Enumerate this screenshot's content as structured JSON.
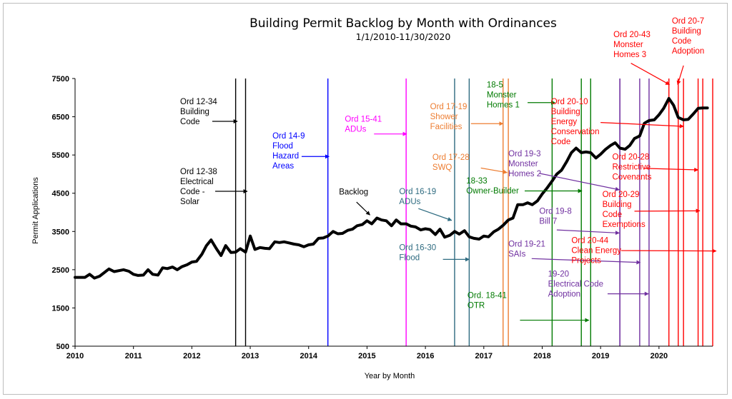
{
  "chart_data": {
    "type": "line",
    "title": "Building Permit Backlog by Month with Ordinances",
    "subtitle": "1/1/2010-11/30/2020",
    "xlabel": "Year by Month",
    "ylabel": "Permit Applications",
    "xlim": [
      2010,
      2020.92
    ],
    "ylim": [
      500,
      7500
    ],
    "x_ticks": [
      "2010",
      "2011",
      "2012",
      "2013",
      "2014",
      "2015",
      "2016",
      "2017",
      "2018",
      "2019",
      "2020"
    ],
    "y_ticks": [
      "500",
      "1500",
      "2500",
      "3500",
      "4500",
      "5500",
      "6500",
      "7500"
    ],
    "grid": false,
    "series": [
      {
        "name": "Backlog",
        "color": "#000000",
        "points": [
          [
            2010.0,
            2300
          ],
          [
            2010.17,
            2300
          ],
          [
            2010.25,
            2380
          ],
          [
            2010.33,
            2280
          ],
          [
            2010.42,
            2330
          ],
          [
            2010.58,
            2520
          ],
          [
            2010.67,
            2450
          ],
          [
            2010.83,
            2500
          ],
          [
            2010.92,
            2460
          ],
          [
            2011.0,
            2380
          ],
          [
            2011.08,
            2350
          ],
          [
            2011.17,
            2360
          ],
          [
            2011.25,
            2500
          ],
          [
            2011.33,
            2380
          ],
          [
            2011.42,
            2360
          ],
          [
            2011.5,
            2550
          ],
          [
            2011.58,
            2530
          ],
          [
            2011.67,
            2570
          ],
          [
            2011.75,
            2500
          ],
          [
            2011.83,
            2580
          ],
          [
            2011.92,
            2630
          ],
          [
            2012.0,
            2700
          ],
          [
            2012.08,
            2720
          ],
          [
            2012.17,
            2900
          ],
          [
            2012.25,
            3130
          ],
          [
            2012.33,
            3280
          ],
          [
            2012.42,
            3050
          ],
          [
            2012.5,
            2870
          ],
          [
            2012.58,
            3130
          ],
          [
            2012.67,
            2950
          ],
          [
            2012.75,
            2960
          ],
          [
            2012.83,
            3050
          ],
          [
            2012.92,
            2960
          ],
          [
            2013.0,
            3380
          ],
          [
            2013.08,
            3030
          ],
          [
            2013.17,
            3080
          ],
          [
            2013.25,
            3060
          ],
          [
            2013.33,
            3050
          ],
          [
            2013.42,
            3230
          ],
          [
            2013.5,
            3210
          ],
          [
            2013.58,
            3230
          ],
          [
            2013.67,
            3200
          ],
          [
            2013.75,
            3170
          ],
          [
            2013.83,
            3150
          ],
          [
            2013.92,
            3100
          ],
          [
            2014.0,
            3150
          ],
          [
            2014.08,
            3170
          ],
          [
            2014.17,
            3320
          ],
          [
            2014.25,
            3330
          ],
          [
            2014.33,
            3380
          ],
          [
            2014.42,
            3500
          ],
          [
            2014.5,
            3440
          ],
          [
            2014.58,
            3450
          ],
          [
            2014.67,
            3530
          ],
          [
            2014.75,
            3560
          ],
          [
            2014.83,
            3650
          ],
          [
            2014.92,
            3680
          ],
          [
            2015.0,
            3780
          ],
          [
            2015.08,
            3700
          ],
          [
            2015.17,
            3850
          ],
          [
            2015.25,
            3800
          ],
          [
            2015.33,
            3780
          ],
          [
            2015.42,
            3650
          ],
          [
            2015.5,
            3800
          ],
          [
            2015.58,
            3700
          ],
          [
            2015.67,
            3700
          ],
          [
            2015.75,
            3640
          ],
          [
            2015.83,
            3620
          ],
          [
            2015.92,
            3540
          ],
          [
            2016.0,
            3570
          ],
          [
            2016.08,
            3550
          ],
          [
            2016.17,
            3420
          ],
          [
            2016.25,
            3560
          ],
          [
            2016.33,
            3350
          ],
          [
            2016.42,
            3400
          ],
          [
            2016.5,
            3500
          ],
          [
            2016.58,
            3430
          ],
          [
            2016.67,
            3520
          ],
          [
            2016.75,
            3360
          ],
          [
            2016.83,
            3320
          ],
          [
            2016.92,
            3300
          ],
          [
            2017.0,
            3380
          ],
          [
            2017.08,
            3360
          ],
          [
            2017.17,
            3490
          ],
          [
            2017.25,
            3560
          ],
          [
            2017.33,
            3660
          ],
          [
            2017.42,
            3800
          ],
          [
            2017.5,
            3850
          ],
          [
            2017.58,
            4200
          ],
          [
            2017.67,
            4200
          ],
          [
            2017.75,
            4250
          ],
          [
            2017.83,
            4200
          ],
          [
            2017.92,
            4300
          ],
          [
            2018.0,
            4480
          ],
          [
            2018.08,
            4630
          ],
          [
            2018.17,
            4820
          ],
          [
            2018.25,
            5000
          ],
          [
            2018.33,
            5100
          ],
          [
            2018.42,
            5330
          ],
          [
            2018.5,
            5560
          ],
          [
            2018.58,
            5680
          ],
          [
            2018.67,
            5560
          ],
          [
            2018.75,
            5580
          ],
          [
            2018.83,
            5560
          ],
          [
            2018.92,
            5420
          ],
          [
            2019.0,
            5520
          ],
          [
            2019.08,
            5640
          ],
          [
            2019.17,
            5750
          ],
          [
            2019.25,
            5820
          ],
          [
            2019.33,
            5680
          ],
          [
            2019.42,
            5650
          ],
          [
            2019.5,
            5750
          ],
          [
            2019.58,
            5930
          ],
          [
            2019.67,
            6000
          ],
          [
            2019.75,
            6330
          ],
          [
            2019.83,
            6400
          ],
          [
            2019.92,
            6420
          ],
          [
            2020.0,
            6550
          ],
          [
            2020.08,
            6720
          ],
          [
            2020.17,
            6980
          ],
          [
            2020.25,
            6800
          ],
          [
            2020.33,
            6480
          ],
          [
            2020.42,
            6420
          ],
          [
            2020.5,
            6430
          ],
          [
            2020.58,
            6560
          ],
          [
            2020.67,
            6720
          ],
          [
            2020.75,
            6730
          ],
          [
            2020.83,
            6730
          ]
        ]
      }
    ],
    "annotations": [
      {
        "label": "Backlog",
        "lines": [
          "Backlog"
        ],
        "color": "#000000",
        "text_x": 2014.52,
        "text_y": 4470,
        "arrow_from": [
          2014.82,
          4270
        ],
        "arrow_to": [
          2015.05,
          3930
        ],
        "line_x": null
      },
      {
        "label": "Ord 12-34 Building Code",
        "lines": [
          "Ord 12-34",
          "Building",
          "Code"
        ],
        "color": "#000000",
        "text_x": 2011.8,
        "text_y": 6830,
        "arrow_from": [
          2012.35,
          6380
        ],
        "arrow_to": [
          2012.78,
          6380
        ],
        "line_x": 2012.75
      },
      {
        "label": "Ord 12-38 Electrical Code - Solar",
        "lines": [
          "Ord 12-38",
          "Electrical",
          "Code -",
          "Solar"
        ],
        "color": "#000000",
        "text_x": 2011.8,
        "text_y": 5000,
        "arrow_from": [
          2012.4,
          4550
        ],
        "arrow_to": [
          2012.95,
          4550
        ],
        "line_x": 2012.92
      },
      {
        "label": "Ord 14-9 Flood Hazard Areas",
        "lines": [
          "Ord 14-9",
          "Flood",
          "Hazard",
          "Areas"
        ],
        "color": "#0000ff",
        "text_x": 2013.38,
        "text_y": 5930,
        "arrow_from": [
          2013.88,
          5460
        ],
        "arrow_to": [
          2014.35,
          5460
        ],
        "line_x": 2014.33
      },
      {
        "label": "Ord 15-41 ADUs",
        "lines": [
          "Ord 15-41",
          "ADUs"
        ],
        "color": "#ff00ff",
        "text_x": 2014.62,
        "text_y": 6370,
        "arrow_from": [
          2015.12,
          6050
        ],
        "arrow_to": [
          2015.68,
          6050
        ],
        "line_x": 2015.67
      },
      {
        "label": "Ord 16-19 ADUs",
        "lines": [
          "Ord 16-19",
          "ADUs"
        ],
        "color": "#2e6b80",
        "text_x": 2015.55,
        "text_y": 4480,
        "arrow_from": [
          2015.88,
          4100
        ],
        "arrow_to": [
          2016.45,
          3790
        ],
        "line_x": 2016.5
      },
      {
        "label": "Ord 16-30 Flood",
        "lines": [
          "Ord 16-30",
          "Flood"
        ],
        "color": "#2e6b80",
        "text_x": 2015.55,
        "text_y": 3010,
        "arrow_from": [
          2016.3,
          2770
        ],
        "arrow_to": [
          2016.75,
          2770
        ],
        "line_x": 2016.75
      },
      {
        "label": "Ord 17-19 Shower Facilities",
        "lines": [
          "Ord 17-19",
          "Shower",
          "Facilities"
        ],
        "color": "#ed7d31",
        "text_x": 2016.08,
        "text_y": 6700,
        "arrow_from": [
          2016.78,
          6320
        ],
        "arrow_to": [
          2017.33,
          6320
        ],
        "line_x": 2017.33
      },
      {
        "label": "Ord 17-28 SWQ",
        "lines": [
          "Ord 17-28",
          "SWQ"
        ],
        "color": "#ed7d31",
        "text_x": 2016.12,
        "text_y": 5370,
        "arrow_from": [
          2016.95,
          5160
        ],
        "arrow_to": [
          2017.4,
          5040
        ],
        "line_x": 2017.42
      },
      {
        "label": "18-5 Monster Homes 1",
        "lines": [
          "18-5",
          "Monster",
          "Homes 1"
        ],
        "color": "#007a00",
        "text_x": 2017.05,
        "text_y": 7270,
        "arrow_from": [
          2017.75,
          6870
        ],
        "arrow_to": [
          2018.22,
          6870
        ],
        "line_x": 2018.17
      },
      {
        "label": "18-33 Owner-Builder",
        "lines": [
          "18-33",
          "Owner-Builder"
        ],
        "color": "#007a00",
        "text_x": 2016.7,
        "text_y": 4760,
        "arrow_from": [
          2017.7,
          4560
        ],
        "arrow_to": [
          2018.68,
          4560
        ],
        "line_x": 2018.67
      },
      {
        "label": "Ord. 18-41 OTR",
        "lines": [
          "Ord. 18-41",
          "OTR"
        ],
        "color": "#007a00",
        "text_x": 2016.72,
        "text_y": 1760,
        "arrow_from": [
          2017.62,
          1180
        ],
        "arrow_to": [
          2018.8,
          1180
        ],
        "line_x": 2018.83
      },
      {
        "label": "Ord 19-3 Monster Homes 2",
        "lines": [
          "Ord 19-3",
          "Monster",
          "Homes 2"
        ],
        "color": "#7030a0",
        "text_x": 2017.42,
        "text_y": 5470,
        "arrow_from": [
          2017.95,
          5020
        ],
        "arrow_to": [
          2019.32,
          4590
        ],
        "line_x": 2019.33
      },
      {
        "label": "Ord 19-8 Bill 7",
        "lines": [
          "Ord 19-8",
          "Bill 7"
        ],
        "color": "#7030a0",
        "text_x": 2017.95,
        "text_y": 3960,
        "arrow_from": [
          2018.25,
          3540
        ],
        "arrow_to": [
          2019.32,
          3460
        ],
        "line_x": 2019.33
      },
      {
        "label": "Ord 19-21 SAIs",
        "lines": [
          "Ord 19-21",
          "SAIs"
        ],
        "color": "#7030a0",
        "text_x": 2017.42,
        "text_y": 3100,
        "arrow_from": [
          2017.82,
          2790
        ],
        "arrow_to": [
          2019.68,
          2690
        ],
        "line_x": 2019.67
      },
      {
        "label": "19-20 Electrical Code Adoption",
        "lines": [
          "19-20",
          "Electrical Code",
          "Adoption"
        ],
        "color": "#7030a0",
        "text_x": 2018.1,
        "text_y": 2320,
        "arrow_from": [
          2019.12,
          1870
        ],
        "arrow_to": [
          2019.82,
          1870
        ],
        "line_x": 2019.83
      },
      {
        "label": "Ord 20-43 Monster Homes 3",
        "lines": [
          "Ord 20-43",
          "Monster",
          "Homes 3"
        ],
        "color": "#ff0000",
        "text_x": 2019.22,
        "text_y": 8580,
        "arrow_from": [
          2019.52,
          7900
        ],
        "arrow_to": [
          2020.18,
          7340
        ],
        "line_x": 2020.17
      },
      {
        "label": "Ord 20-7 Building Code Adoption",
        "lines": [
          "Ord 20-7",
          "Building",
          "Code",
          "Adoption"
        ],
        "color": "#ff0000",
        "text_x": 2020.22,
        "text_y": 8940,
        "arrow_from": [
          2020.42,
          7840
        ],
        "arrow_to": [
          2020.32,
          7340
        ],
        "line_x": 2020.33
      },
      {
        "label": "Ord 20-10 Building Energy Conservation Code",
        "lines": [
          "Ord 20-10",
          "Building",
          "Energy",
          "Conservation",
          "Code"
        ],
        "color": "#ff0000",
        "text_x": 2018.15,
        "text_y": 6830,
        "arrow_from": [
          2019.0,
          6350
        ],
        "arrow_to": [
          2020.42,
          6250
        ],
        "line_x": 2020.42
      },
      {
        "label": "Ord 20-28 Restrictive Covenants",
        "lines": [
          "Ord 20-28",
          "Restrictive",
          "Covenants"
        ],
        "color": "#ff0000",
        "text_x": 2019.2,
        "text_y": 5380,
        "arrow_from": [
          2019.75,
          5150
        ],
        "arrow_to": [
          2020.67,
          5110
        ],
        "line_x": 2020.67
      },
      {
        "label": "Ord 20-29 Building Code Exemptions",
        "lines": [
          "Ord 20-29",
          "Building",
          "Code",
          "Exemptions"
        ],
        "color": "#ff0000",
        "text_x": 2019.03,
        "text_y": 4400,
        "arrow_from": [
          2019.58,
          4030
        ],
        "arrow_to": [
          2020.7,
          4040
        ],
        "line_x": 2020.75
      },
      {
        "label": "Ord 20-44 Clean Energy Projects",
        "lines": [
          "Ord 20-44",
          "Clean Energy",
          "Projects"
        ],
        "color": "#ff0000",
        "text_x": 2018.5,
        "text_y": 3200,
        "arrow_from": [
          2019.35,
          3000
        ],
        "arrow_to": [
          2020.98,
          2990
        ],
        "line_x": 2020.92
      }
    ]
  }
}
